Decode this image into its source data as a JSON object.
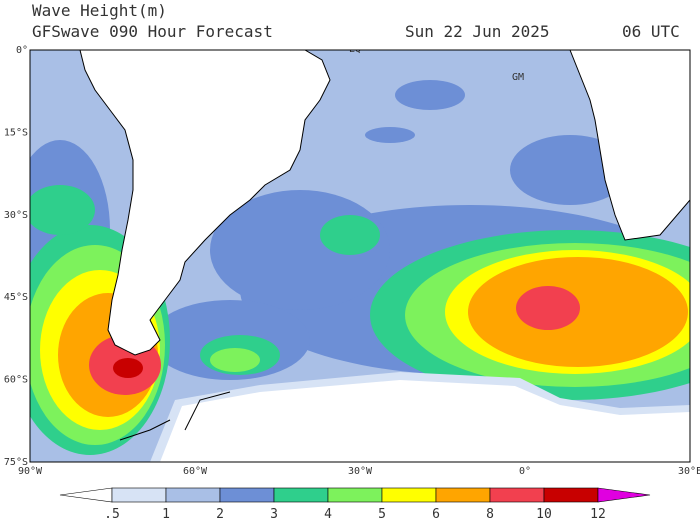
{
  "title": "Wave Height(m)",
  "subtitle": "GFSwave 090 Hour Forecast",
  "date": "Sun 22 Jun 2025",
  "time": "06 UTC",
  "lat_labels": [
    "0°",
    "15°S",
    "30°S",
    "45°S",
    "60°S",
    "75°S"
  ],
  "lon_labels": [
    "90°W",
    "60°W",
    "30°W",
    "0°",
    "30°E"
  ],
  "map_labels": [
    "EQ",
    "GM"
  ],
  "colorbar": {
    "labels": [
      ".5",
      "1",
      "2",
      "3",
      "4",
      "5",
      "6",
      "8",
      "10",
      "12"
    ],
    "colors": [
      "#ffffff",
      "#d7e3f5",
      "#a9bfe6",
      "#6d8fd6",
      "#2fcf8c",
      "#7df25c",
      "#ffff00",
      "#ffa500",
      "#f2404f",
      "#c80000",
      "#e000e0"
    ]
  }
}
